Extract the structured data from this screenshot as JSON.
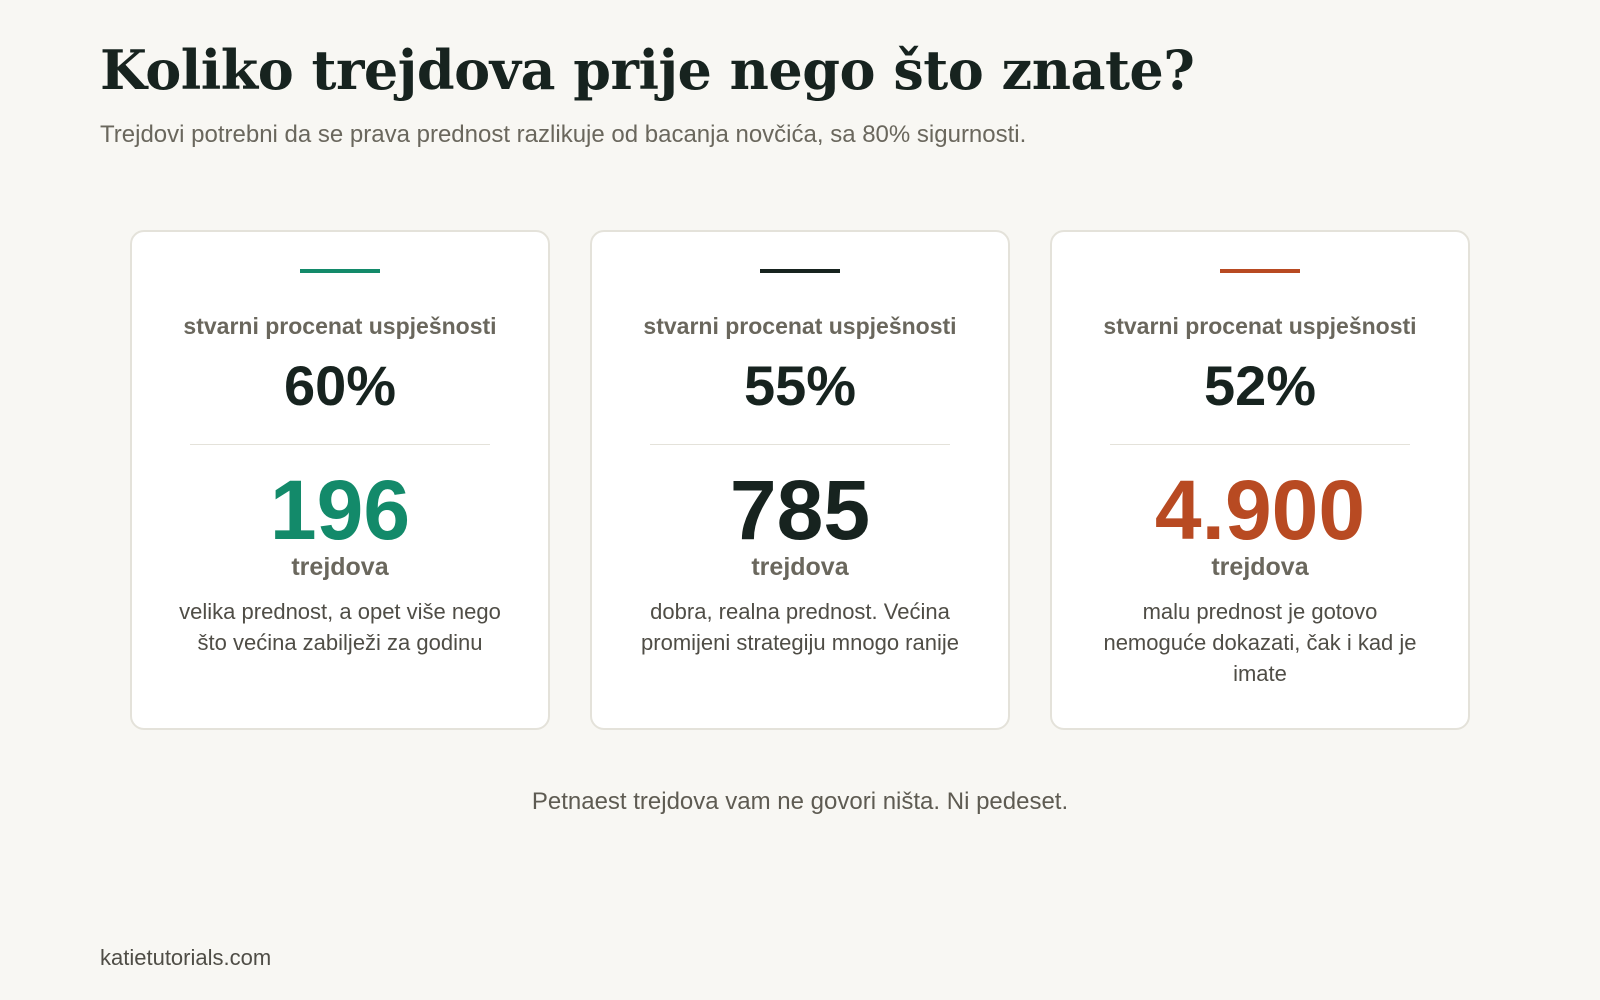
{
  "header": {
    "title": "Koliko trejdova prije nego što znate?",
    "subtitle": "Trejdovi potrebni da se prava prednost razlikuje od bacanja novčića, sa 80% sigurnosti."
  },
  "cards": [
    {
      "color": "#138a6a",
      "label": "stvarni procenat uspješnosti",
      "rate": "60%",
      "count": "196",
      "unit": "trejdova",
      "description": "velika prednost, a opet više nego što većina zabilježi za godinu"
    },
    {
      "color": "#17231f",
      "label": "stvarni procenat uspješnosti",
      "rate": "55%",
      "count": "785",
      "unit": "trejdova",
      "description": "dobra, realna prednost. Većina promijeni strategiju mnogo ranije"
    },
    {
      "color": "#b84a22",
      "label": "stvarni procenat uspješnosti",
      "rate": "52%",
      "count": "4.900",
      "unit": "trejdova",
      "description": "malu prednost je gotovo nemoguće dokazati, čak i kad je imate"
    }
  ],
  "footer": {
    "note": "Petnaest trejdova vam ne govori ništa. Ni pedeset.",
    "source": "katietutorials.com"
  }
}
